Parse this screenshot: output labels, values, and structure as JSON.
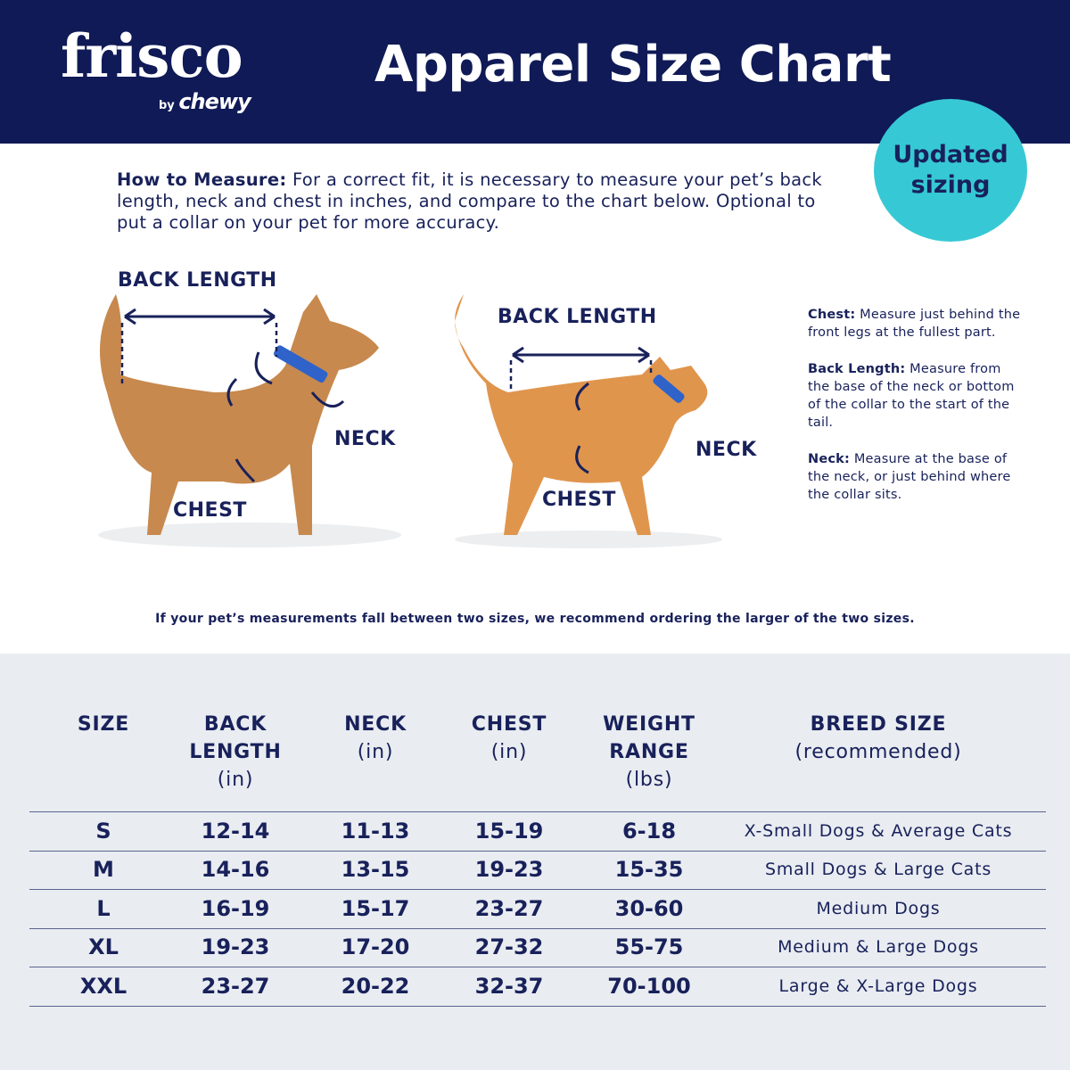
{
  "header": {
    "logo_text": "frisco",
    "logo_sub_by": "by",
    "logo_sub_brand": "chewy",
    "title": "Apparel Size Chart",
    "background": "#0f1a56"
  },
  "badge": {
    "text_line1": "Updated",
    "text_line2": "sizing",
    "color": "#36c9d5"
  },
  "intro": {
    "label": "How to Measure:",
    "text": " For a correct fit, it is necessary to measure your pet’s back length, neck and chest in inches, and compare to the chart below. Optional to put a collar on your pet for more accuracy."
  },
  "dog": {
    "back_length": "BACK LENGTH",
    "neck": "NECK",
    "chest": "CHEST"
  },
  "cat": {
    "back_length": "BACK LENGTH",
    "neck": "NECK",
    "chest": "CHEST"
  },
  "notes": [
    {
      "label": "Chest:",
      "text": " Measure just behind the front legs at the fullest part."
    },
    {
      "label": "Back Length:",
      "text": " Measure from the base of the neck or bottom of the collar to the start of the tail."
    },
    {
      "label": "Neck:",
      "text": " Measure at the base of the neck, or just behind where the collar sits."
    }
  ],
  "recommendation": "If your pet’s measurements fall between two sizes, we recommend ordering the larger of the two sizes.",
  "table": {
    "headers": [
      {
        "bold": "SIZE",
        "unit": ""
      },
      {
        "bold": "BACK LENGTH",
        "unit": "(in)"
      },
      {
        "bold": "NECK",
        "unit": "(in)"
      },
      {
        "bold": "CHEST",
        "unit": "(in)"
      },
      {
        "bold": "WEIGHT RANGE",
        "unit": "(lbs)"
      },
      {
        "bold": "BREED SIZE",
        "unit": "(recommended)"
      }
    ],
    "rows": [
      [
        "S",
        "12-14",
        "11-13",
        "15-19",
        "6-18",
        "X-Small Dogs & Average Cats"
      ],
      [
        "M",
        "14-16",
        "13-15",
        "19-23",
        "15-35",
        "Small Dogs & Large Cats"
      ],
      [
        "L",
        "16-19",
        "15-17",
        "23-27",
        "30-60",
        "Medium Dogs"
      ],
      [
        "XL",
        "19-23",
        "17-20",
        "27-32",
        "55-75",
        "Medium & Large Dogs"
      ],
      [
        "XXL",
        "23-27",
        "20-22",
        "32-37",
        "70-100",
        "Large & X-Large Dogs"
      ]
    ]
  }
}
